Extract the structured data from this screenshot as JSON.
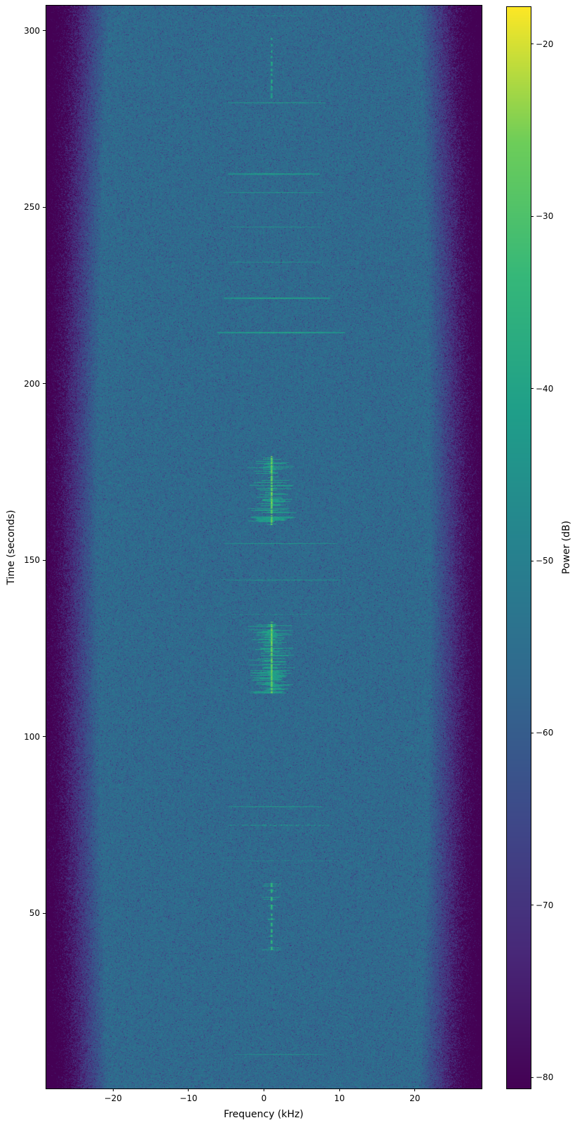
{
  "figure": {
    "background": "#ffffff",
    "spine_color": "#000000"
  },
  "chart_data": {
    "type": "heatmap",
    "subtype": "spectrogram-waterfall",
    "title": "",
    "xlabel": "Frequency (kHz)",
    "ylabel": "Time (seconds)",
    "colorbar_label": "Power (dB)",
    "xlim": [
      -28.85,
      28.85
    ],
    "ylim": [
      0.4,
      307.1
    ],
    "grid": false,
    "xticks": [
      {
        "value": -20,
        "label": "−20"
      },
      {
        "value": -10,
        "label": "−10"
      },
      {
        "value": 0,
        "label": "0"
      },
      {
        "value": 10,
        "label": "10"
      },
      {
        "value": 20,
        "label": "20"
      }
    ],
    "yticks": [
      {
        "value": 300,
        "label": "300"
      },
      {
        "value": 250,
        "label": "250"
      },
      {
        "value": 200,
        "label": "200"
      },
      {
        "value": 150,
        "label": "150"
      },
      {
        "value": 100,
        "label": "100"
      },
      {
        "value": 50,
        "label": "50"
      }
    ],
    "colorbar": {
      "vmin": -80.65,
      "vmax": -17.84,
      "ticks": [
        {
          "value": -20,
          "label": "−20"
        },
        {
          "value": -30,
          "label": "−30"
        },
        {
          "value": -40,
          "label": "−40"
        },
        {
          "value": -50,
          "label": "−50"
        },
        {
          "value": -60,
          "label": "−60"
        },
        {
          "value": -70,
          "label": "−70"
        },
        {
          "value": -80,
          "label": "−80"
        }
      ]
    },
    "colormap": {
      "name": "viridis",
      "stops": [
        "#440154",
        "#482878",
        "#3e4989",
        "#31688e",
        "#26828e",
        "#1f9e89",
        "#35b779",
        "#6dcd59",
        "#fde725"
      ]
    },
    "noise_floor": {
      "mean_db": -56.0,
      "sigma_db": 2.8,
      "dark_speckle_prob": 0.05
    },
    "edge_rolloff": {
      "start_khz_center": 22.0,
      "start_khz_edge": 20.5,
      "slope_db_per_khz": 4.5
    },
    "features": {
      "wideband_bursts": [
        {
          "t": 304.4,
          "f0": -3.1,
          "f1": 5.0,
          "level_db": -47,
          "style": "dotted",
          "thickness": 1
        },
        {
          "t": 279.7,
          "f0": -4.8,
          "f1": 8.0,
          "level_db": -41,
          "style": "solid",
          "thickness": 1
        },
        {
          "t": 259.5,
          "f0": -4.8,
          "f1": 7.3,
          "level_db": -41,
          "style": "solid",
          "thickness": 2
        },
        {
          "t": 254.3,
          "f0": -5.3,
          "f1": 7.8,
          "level_db": -43,
          "style": "solid",
          "thickness": 1
        },
        {
          "t": 244.4,
          "f0": -4.4,
          "f1": 7.3,
          "level_db": -44,
          "style": "solid",
          "thickness": 1
        },
        {
          "t": 234.6,
          "f0": -4.8,
          "f1": 7.3,
          "level_db": -44,
          "style": "solid",
          "thickness": 1
        },
        {
          "t": 224.5,
          "f0": -5.3,
          "f1": 8.7,
          "level_db": -40,
          "style": "solid",
          "thickness": 2
        },
        {
          "t": 214.6,
          "f0": -6.2,
          "f1": 10.6,
          "level_db": -40,
          "style": "solid",
          "thickness": 2
        },
        {
          "t": 154.8,
          "f0": -5.3,
          "f1": 9.6,
          "level_db": -42,
          "style": "solid",
          "thickness": 1
        },
        {
          "t": 144.5,
          "f0": -5.7,
          "f1": 10.1,
          "level_db": -43,
          "style": "solid",
          "thickness": 1
        },
        {
          "t": 134.7,
          "f0": -6.2,
          "f1": 11.9,
          "level_db": -46,
          "style": "dotted",
          "thickness": 1
        },
        {
          "t": 80.3,
          "f0": -4.8,
          "f1": 7.8,
          "level_db": -41,
          "style": "solid",
          "thickness": 1
        },
        {
          "t": 75.1,
          "f0": -4.8,
          "f1": 8.7,
          "level_db": -43,
          "style": "dotted",
          "thickness": 2
        },
        {
          "t": 65.0,
          "f0": -5.3,
          "f1": 11.5,
          "level_db": -47,
          "style": "dotted",
          "thickness": 1
        },
        {
          "t": 10.2,
          "f0": -4.0,
          "f1": 7.8,
          "level_db": -44,
          "style": "solid",
          "thickness": 1
        }
      ],
      "narrowband_streaks": [
        {
          "t_start": 279.9,
          "t_end": 298.0,
          "f_khz": 1.0,
          "level_db": -39,
          "style": "dashed"
        },
        {
          "t_start": 160.2,
          "t_end": 179.5,
          "f_khz": 1.0,
          "level_db": -26,
          "style": "burst",
          "smear": {
            "prob": 0.8,
            "max_khz": 3.2,
            "level_db": -41
          }
        },
        {
          "t_start": 112.6,
          "t_end": 132.5,
          "f_khz": 1.0,
          "level_db": -26,
          "style": "burst",
          "smear": {
            "prob": 0.8,
            "max_khz": 3.0,
            "level_db": -41
          }
        },
        {
          "t_start": 39.7,
          "t_end": 58.6,
          "f_khz": 1.0,
          "level_db": -34,
          "style": "dashed",
          "smear": {
            "prob": 0.3,
            "max_khz": 1.3,
            "level_db": -43
          }
        }
      ]
    }
  }
}
